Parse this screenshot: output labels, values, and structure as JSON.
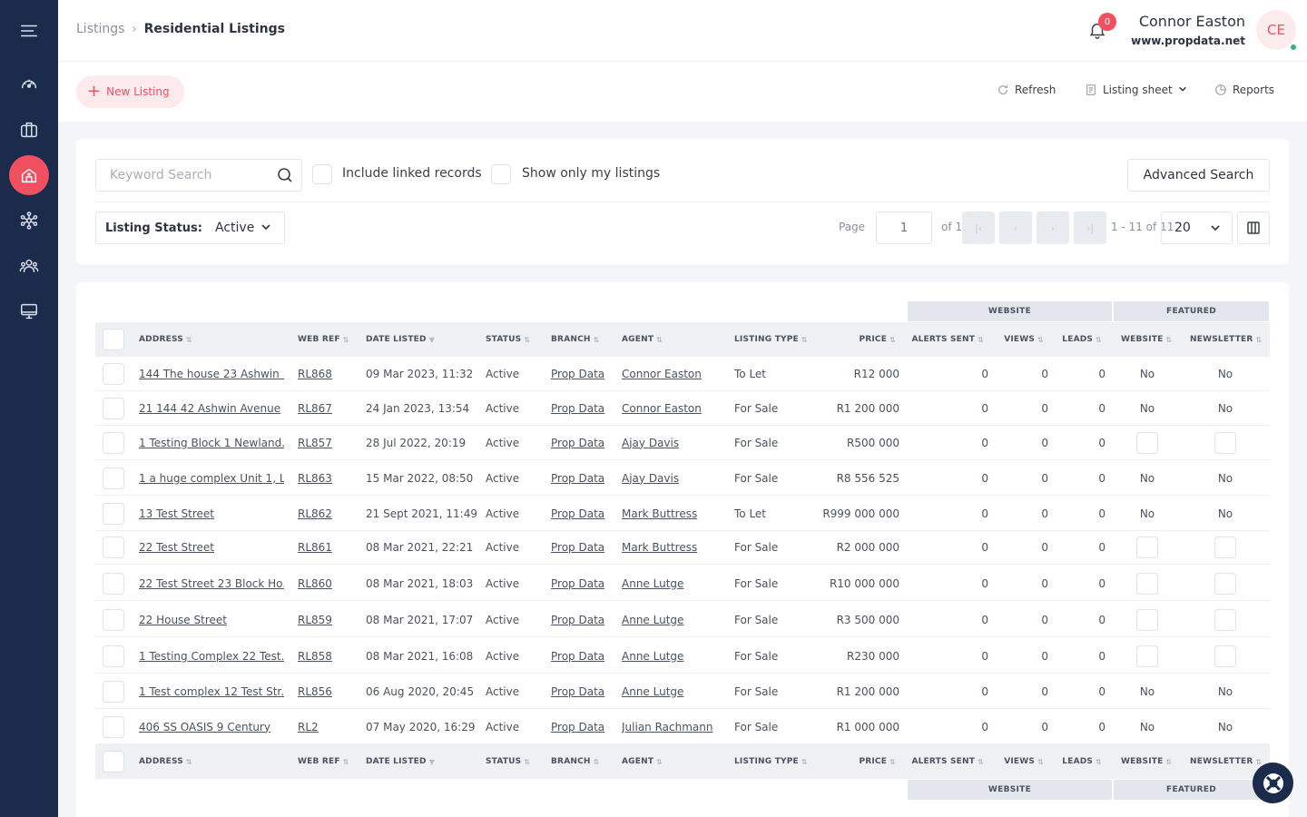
{
  "sidebar": {
    "items": [
      {
        "name": "menu",
        "icon": "menu-icon"
      },
      {
        "name": "dashboard",
        "icon": "gauge-icon"
      },
      {
        "name": "briefcase",
        "icon": "briefcase-icon"
      },
      {
        "name": "residential",
        "icon": "home-icon",
        "active": true
      },
      {
        "name": "network",
        "icon": "network-icon"
      },
      {
        "name": "contacts",
        "icon": "users-icon"
      },
      {
        "name": "display",
        "icon": "monitor-icon"
      }
    ],
    "accent": "#f0505f",
    "background": "#1b2b4b"
  },
  "header": {
    "breadcrumb_parent": "Listings",
    "breadcrumb_current": "Residential Listings",
    "notifications_count": "0",
    "user_name": "Connor Easton",
    "user_site": "www.propdata.net",
    "avatar_initials": "CE"
  },
  "toolbar": {
    "new_listing": "New Listing",
    "refresh": "Refresh",
    "listing_sheet": "Listing sheet",
    "reports": "Reports"
  },
  "search": {
    "placeholder": "Keyword Search",
    "include_linked": "Include linked records",
    "only_mine": "Show only my listings",
    "advanced": "Advanced Search",
    "status_label": "Listing Status:",
    "status_value": "Active",
    "page_label": "Page",
    "page_value": "1",
    "of_label": "of 1",
    "range": "1 - 11 of 11",
    "per_page": "20"
  },
  "table": {
    "group_website": "WEBSITE",
    "group_featured": "FEATURED",
    "columns": {
      "address": "ADDRESS",
      "web_ref": "WEB REF",
      "date_listed": "DATE LISTED",
      "status": "STATUS",
      "branch": "BRANCH",
      "agent": "AGENT",
      "listing_type": "LISTING TYPE",
      "price": "PRICE",
      "alerts_sent": "ALERTS SENT",
      "views": "VIEWS",
      "leads": "LEADS",
      "website": "WEBSITE",
      "newsletter": "NEWSLETTER"
    },
    "rows": [
      {
        "address": "144 The house 23 Ashwin ...",
        "ref": "RL868",
        "date": "09 Mar 2023, 11:32",
        "status": "Active",
        "branch": "Prop Data",
        "agent": "Connor Easton",
        "type": "To Let",
        "price": "R12 000",
        "alerts": "0",
        "views": "0",
        "leads": "0",
        "website": "No",
        "newsletter": "No"
      },
      {
        "address": "21 144 42 Ashwin Avenue",
        "ref": "RL867",
        "date": "24 Jan 2023, 13:54",
        "status": "Active",
        "branch": "Prop Data",
        "agent": "Connor Easton",
        "type": "For Sale",
        "price": "R1 200 000",
        "alerts": "0",
        "views": "0",
        "leads": "0",
        "website": "No",
        "newsletter": "No"
      },
      {
        "address": "1 Testing Block 1 Newland...",
        "ref": "RL857",
        "date": "28 Jul 2022, 20:19",
        "status": "Active",
        "branch": "Prop Data",
        "agent": "Ajay Davis",
        "type": "For Sale",
        "price": "R500 000",
        "alerts": "0",
        "views": "0",
        "leads": "0",
        "website": "",
        "newsletter": ""
      },
      {
        "address": "1 a huge complex Unit 1, L...",
        "ref": "RL863",
        "date": "15 Mar 2022, 08:50",
        "status": "Active",
        "branch": "Prop Data",
        "agent": "Ajay Davis",
        "type": "For Sale",
        "price": "R8 556 525",
        "alerts": "0",
        "views": "0",
        "leads": "0",
        "website": "No",
        "newsletter": "No"
      },
      {
        "address": "13 Test Street",
        "ref": "RL862",
        "date": "21 Sept 2021, 11:49",
        "status": "Active",
        "branch": "Prop Data",
        "agent": "Mark Buttress",
        "type": "To Let",
        "price": "R999 000 000",
        "alerts": "0",
        "views": "0",
        "leads": "0",
        "website": "No",
        "newsletter": "No"
      },
      {
        "address": "22 Test Street",
        "ref": "RL861",
        "date": "08 Mar 2021, 22:21",
        "status": "Active",
        "branch": "Prop Data",
        "agent": "Mark Buttress",
        "type": "For Sale",
        "price": "R2 000 000",
        "alerts": "0",
        "views": "0",
        "leads": "0",
        "website": "",
        "newsletter": ""
      },
      {
        "address": "22 Test Street 23 Block Ho...",
        "ref": "RL860",
        "date": "08 Mar 2021, 18:03",
        "status": "Active",
        "branch": "Prop Data",
        "agent": "Anne Lutge",
        "type": "For Sale",
        "price": "R10 000 000",
        "alerts": "0",
        "views": "0",
        "leads": "0",
        "website": "",
        "newsletter": ""
      },
      {
        "address": "22 House Street",
        "ref": "RL859",
        "date": "08 Mar 2021, 17:07",
        "status": "Active",
        "branch": "Prop Data",
        "agent": "Anne Lutge",
        "type": "For Sale",
        "price": "R3 500 000",
        "alerts": "0",
        "views": "0",
        "leads": "0",
        "website": "",
        "newsletter": ""
      },
      {
        "address": "1 Testing Complex 22 Test...",
        "ref": "RL858",
        "date": "08 Mar 2021, 16:08",
        "status": "Active",
        "branch": "Prop Data",
        "agent": "Anne Lutge",
        "type": "For Sale",
        "price": "R230 000",
        "alerts": "0",
        "views": "0",
        "leads": "0",
        "website": "",
        "newsletter": ""
      },
      {
        "address": "1 Test complex 12 Test Str...",
        "ref": "RL856",
        "date": "06 Aug 2020, 20:45",
        "status": "Active",
        "branch": "Prop Data",
        "agent": "Anne Lutge",
        "type": "For Sale",
        "price": "R1 200 000",
        "alerts": "0",
        "views": "0",
        "leads": "0",
        "website": "No",
        "newsletter": "No"
      },
      {
        "address": "406 SS OASIS 9 Century",
        "ref": "RL2",
        "date": "07 May 2020, 16:29",
        "status": "Active",
        "branch": "Prop Data",
        "agent": "Julian Rachmann",
        "type": "For Sale",
        "price": "R1 000 000",
        "alerts": "0",
        "views": "0",
        "leads": "0",
        "website": "No",
        "newsletter": "No"
      }
    ]
  }
}
